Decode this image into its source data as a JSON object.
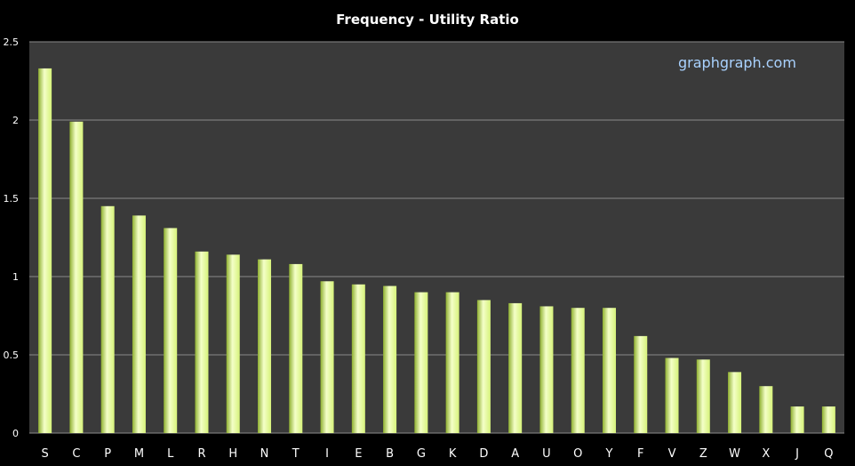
{
  "chart_data": {
    "type": "bar",
    "title": "Frequency - Utility Ratio",
    "xlabel": "",
    "ylabel": "",
    "ylim": [
      0,
      2.5
    ],
    "yticks": [
      "0",
      "0.5",
      "1",
      "1.5",
      "2",
      "2.5"
    ],
    "grid": true,
    "legend": "none",
    "annotations": [
      "graphgraph.com"
    ],
    "categories": [
      "S",
      "C",
      "P",
      "M",
      "L",
      "R",
      "H",
      "N",
      "T",
      "I",
      "E",
      "B",
      "G",
      "K",
      "D",
      "A",
      "U",
      "O",
      "Y",
      "F",
      "V",
      "Z",
      "W",
      "X",
      "J",
      "Q"
    ],
    "values": [
      2.33,
      1.99,
      1.45,
      1.39,
      1.31,
      1.16,
      1.14,
      1.11,
      1.08,
      0.97,
      0.95,
      0.94,
      0.9,
      0.9,
      0.85,
      0.83,
      0.81,
      0.8,
      0.8,
      0.62,
      0.48,
      0.47,
      0.39,
      0.3,
      0.17,
      0.17
    ],
    "colors": {
      "background": "#000000",
      "plot_area": "#3a3a3a",
      "gridline": "#8a8a8a",
      "bar_light": "#f4ffc8",
      "bar_mid": "#d6f27a",
      "bar_dark": "#8fb030",
      "watermark": "#a9d2ff",
      "text": "#ffffff"
    }
  }
}
